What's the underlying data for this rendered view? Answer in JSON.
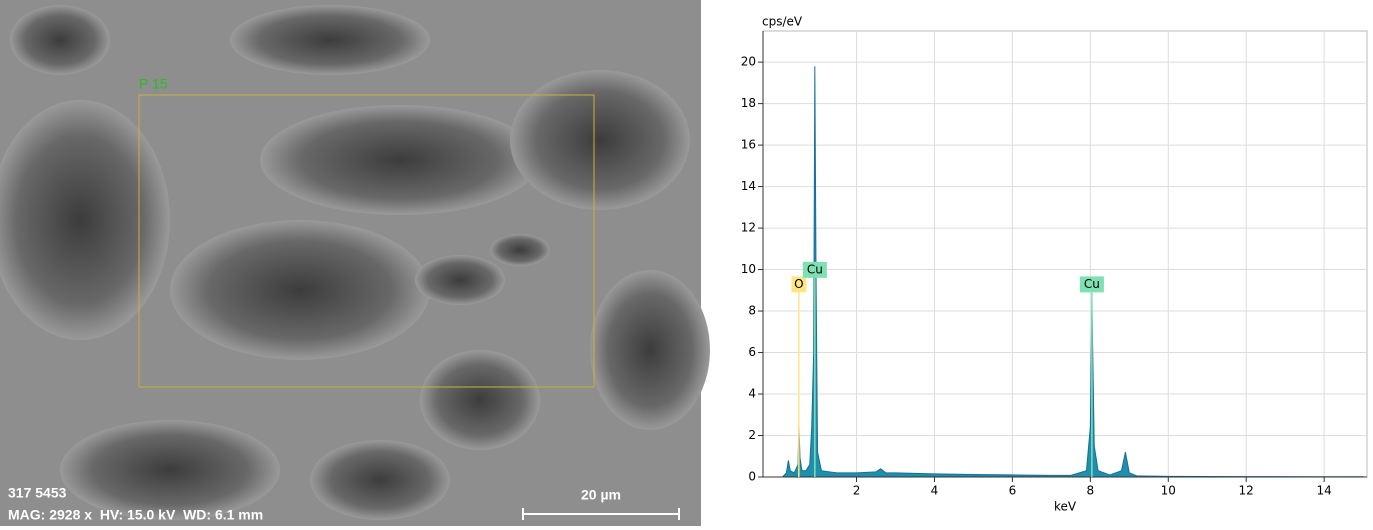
{
  "image": {
    "roi_label": "P 15",
    "id_label": "317 5453",
    "info": "MAG: 2928 x  HV: 15.0 kV  WD: 6.1 mm",
    "scale_bar": "20 µm"
  },
  "chart_data": {
    "type": "area",
    "y_label": "cps/eV",
    "x_label": "keV",
    "x": [
      0.1,
      0.2,
      0.25,
      0.3,
      0.4,
      0.5,
      0.52,
      0.55,
      0.6,
      0.7,
      0.8,
      0.85,
      0.9,
      0.93,
      0.96,
      1.0,
      1.1,
      1.3,
      1.5,
      2.0,
      2.5,
      2.62,
      2.75,
      3,
      4,
      5,
      6,
      7,
      7.5,
      7.9,
      8.0,
      8.04,
      8.1,
      8.2,
      8.5,
      8.8,
      8.9,
      9.0,
      9.2,
      10,
      12,
      14,
      15
    ],
    "values": [
      0,
      0.2,
      0.8,
      0.3,
      0.2,
      0.6,
      2.6,
      0.9,
      0.3,
      0.3,
      0.6,
      2.4,
      6,
      19.8,
      10,
      1.2,
      0.3,
      0.25,
      0.2,
      0.2,
      0.25,
      0.4,
      0.2,
      0.2,
      0.15,
      0.12,
      0.1,
      0.08,
      0.08,
      0.3,
      2.4,
      8.6,
      1.5,
      0.3,
      0.1,
      0.3,
      1.2,
      0.2,
      0.05,
      0.03,
      0.02,
      0.01,
      0.01
    ],
    "color": "#1f8fae",
    "annotations": [
      {
        "label": "O",
        "x": 0.52,
        "y": 8.9,
        "color": "#ffe680"
      },
      {
        "label": "Cu",
        "x": 0.93,
        "y": 9.6,
        "color": "#7fe0b4"
      },
      {
        "label": "Cu",
        "x": 8.04,
        "y": 8.9,
        "color": "#7fe0b4"
      }
    ],
    "xlim": [
      -0.4,
      15.1
    ],
    "ylim": [
      0,
      21.5
    ],
    "xticks": [
      2,
      4,
      6,
      8,
      10,
      12,
      14
    ],
    "yticks": [
      0,
      2,
      4,
      6,
      8,
      10,
      12,
      14,
      16,
      18,
      20
    ],
    "grid": true
  }
}
